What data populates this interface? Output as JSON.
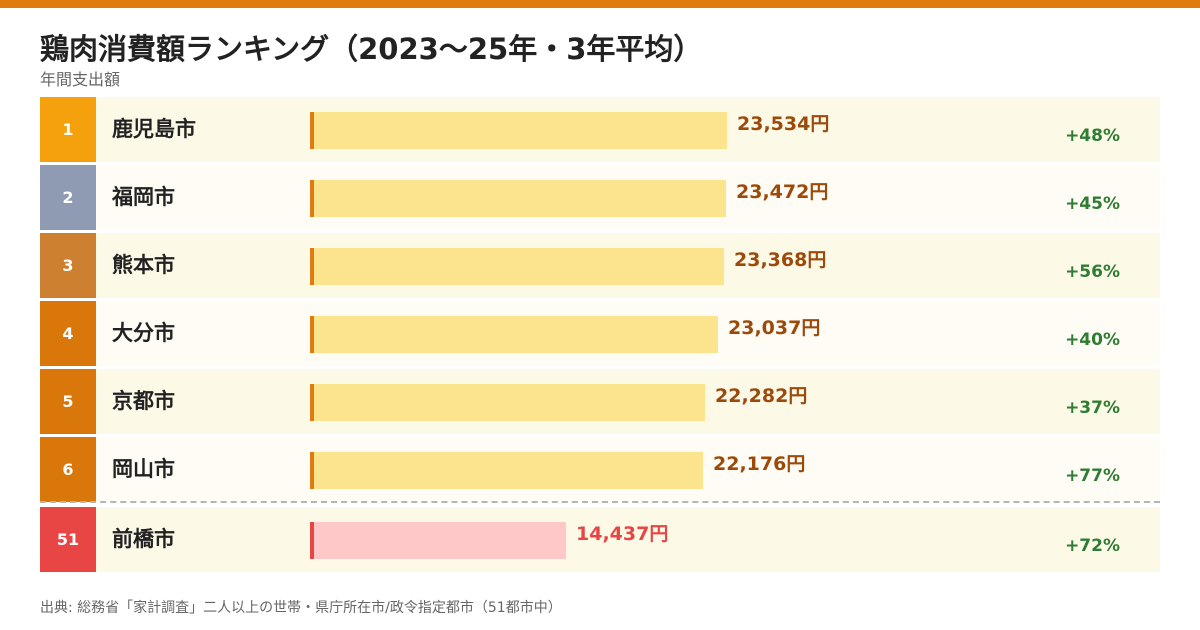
{
  "header": {
    "title": "鶏肉消費額ランキング（2023〜25年・3年平均）",
    "subtitle": "年間支出額"
  },
  "footer": {
    "source": "出典: 総務省「家計調査」二人以上の世帯・県庁所在市/政令指定都市（51都市中）"
  },
  "colors": {
    "accent": "#e07b0f",
    "bar_top": "#fce48e",
    "bar_highlight": "#ffc8c8",
    "value_top": "#9c4a0b",
    "value_highlight": "#e84545",
    "change": "#2e7d32"
  },
  "chart_data": {
    "type": "bar",
    "orientation": "horizontal",
    "unit": "円",
    "categories": [
      "鹿児島市",
      "福岡市",
      "熊本市",
      "大分市",
      "京都市",
      "岡山市",
      "前橋市"
    ],
    "ranks": [
      "1",
      "2",
      "3",
      "4",
      "5",
      "6",
      "51"
    ],
    "values": [
      23534,
      23472,
      23368,
      23037,
      22282,
      22176,
      14437
    ],
    "value_labels": [
      "23,534円",
      "23,472円",
      "23,368円",
      "23,037円",
      "22,282円",
      "22,176円",
      "14,437円"
    ],
    "changes": [
      "+48%",
      "+45%",
      "+56%",
      "+40%",
      "+37%",
      "+77%",
      "+72%"
    ],
    "highlight_index": 6,
    "rank_colors": [
      "#f5a00d",
      "#8e9bb2",
      "#cd8030",
      "#d9770b",
      "#d9770b",
      "#d9770b",
      "#e84545"
    ],
    "xlim": [
      0,
      23534
    ]
  }
}
